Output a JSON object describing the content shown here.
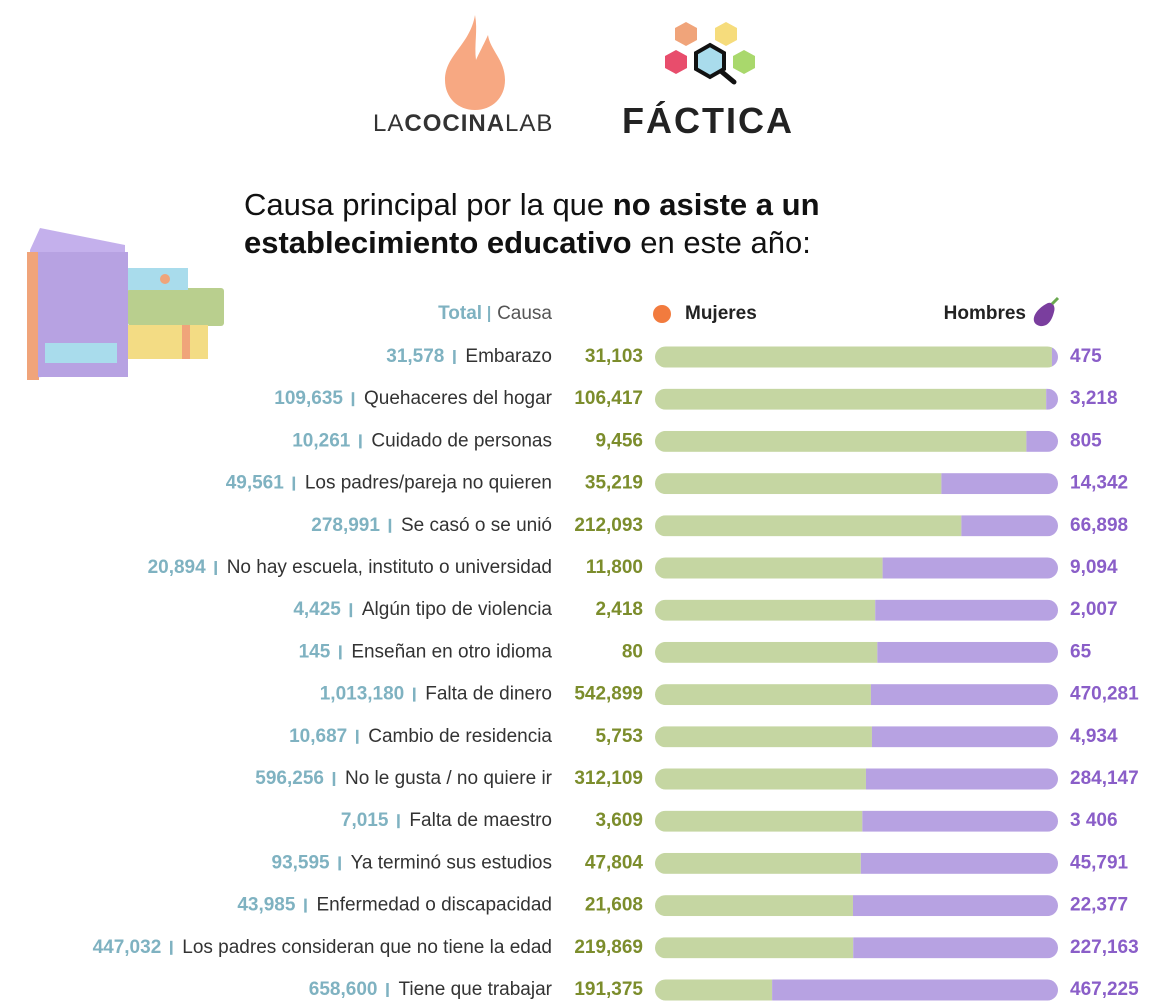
{
  "header": {
    "brand_left": [
      "LA",
      "COCINA",
      "LAB"
    ],
    "brand_right": "FÁCTICA"
  },
  "chart_data": {
    "type": "bar",
    "title": [
      "Causa principal por la que ",
      "no asiste a un establecimiento educativo",
      " en este año:"
    ],
    "stacked": "percent",
    "category_header": "Causa",
    "categories": [
      "Embarazo",
      "Quehaceres del hogar",
      "Cuidado de personas",
      "Los padres/pareja no quieren",
      "Se casó o se unió",
      "No hay escuela, instituto o universidad",
      "Algún tipo de violencia",
      "Enseñan en otro idioma",
      "Falta de dinero",
      "Cambio de residencia",
      "No le gusta / no quiere ir",
      "Falta de maestro",
      "Ya terminó sus estudios",
      "Enfermedad o discapacidad",
      "Los padres consideran que no tiene la edad",
      "Tiene que trabajar"
    ],
    "totals": {
      "name": "Total",
      "values": [
        31578,
        109635,
        10261,
        49561,
        278991,
        20894,
        4425,
        145,
        1013180,
        10687,
        596256,
        7015,
        93595,
        43985,
        447032,
        658600
      ],
      "value_labels": [
        "31,578",
        "109,635",
        "10,261",
        "49,561",
        "278,991",
        "20,894",
        "4,425",
        "145",
        "1,013,180",
        "10,687",
        "596,256",
        "7,015",
        "93,595",
        "43,985",
        "447,032",
        "658,600"
      ]
    },
    "series": [
      {
        "name": "Mujeres",
        "color": "#c5d6a2",
        "values": [
          31103,
          106417,
          9456,
          35219,
          212093,
          11800,
          2418,
          80,
          542899,
          5753,
          312109,
          3609,
          47804,
          21608,
          219869,
          191375
        ],
        "value_labels": [
          "31,103",
          "106,417",
          "9,456",
          "35,219",
          "212,093",
          "11,800",
          "2,418",
          "80",
          "542,899",
          "5,753",
          "312,109",
          "3,609",
          "47,804",
          "21,608",
          "219,869",
          "191,375"
        ]
      },
      {
        "name": "Hombres",
        "color": "#b7a2e2",
        "values": [
          475,
          3218,
          805,
          14342,
          66898,
          9094,
          2007,
          65,
          470281,
          4934,
          284147,
          3406,
          45791,
          22377,
          227163,
          467225
        ],
        "value_labels": [
          "475",
          "3,218",
          "805",
          "14,342",
          "66,898",
          "9,094",
          "2,007",
          "65",
          "470,281",
          "4,934",
          "284,147",
          "3 406",
          "45,791",
          "22,377",
          "227,163",
          "467,225"
        ]
      }
    ]
  }
}
